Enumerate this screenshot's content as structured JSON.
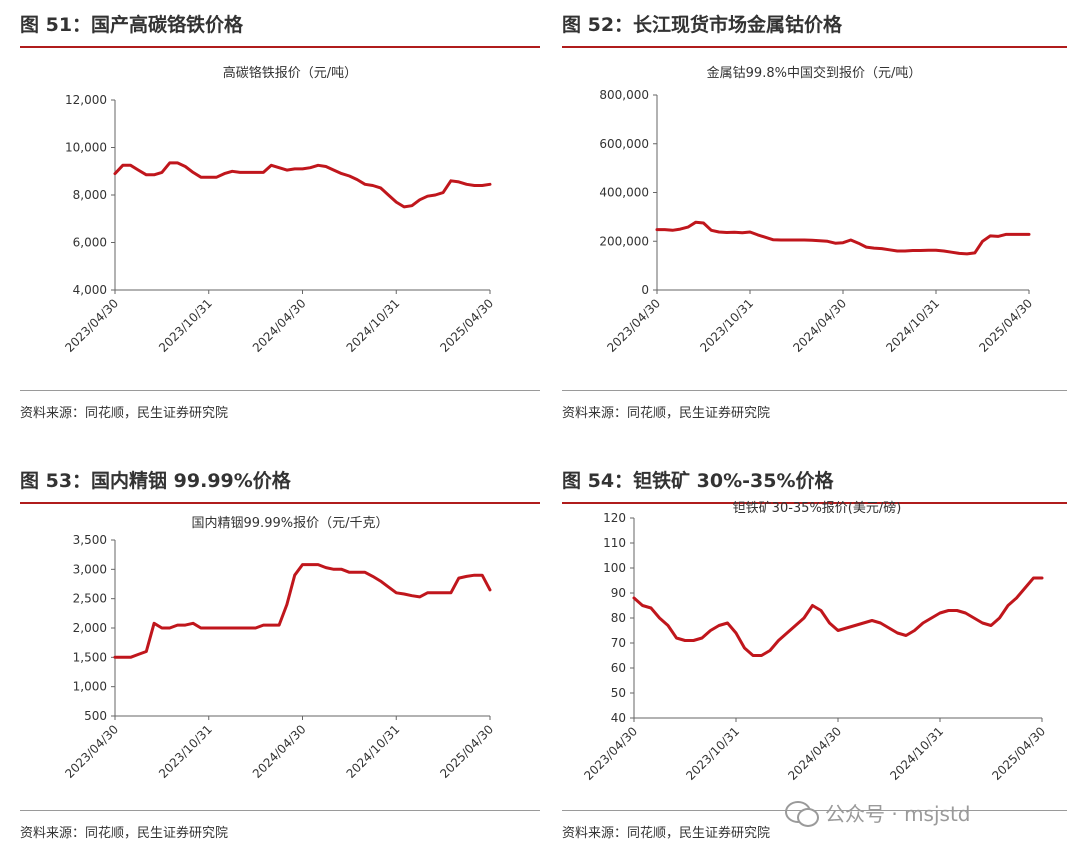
{
  "panels": [
    {
      "fig_title": "图 51：国产高碳铬铁价格",
      "source": "资料来源：同花顺，民生证券研究院",
      "chart_data": {
        "type": "line",
        "title": "高碳铬铁报价（元/吨）",
        "yticks": [
          "12,000",
          "10,000",
          "8,000",
          "6,000",
          "4,000"
        ],
        "ylim": [
          4000,
          12000
        ],
        "xticks": [
          "2023/04/30",
          "2023/10/31",
          "2024/04/30",
          "2024/10/31",
          "2025/04/30"
        ],
        "xlim": [
          0,
          24
        ],
        "series": [
          {
            "x": [
              0,
              0.5,
              1,
              1.5,
              2,
              2.5,
              3,
              3.5,
              4,
              4.5,
              5,
              5.5,
              6,
              6.5,
              7,
              7.5,
              8,
              8.5,
              9,
              9.5,
              10,
              10.5,
              11,
              11.5,
              12,
              12.5,
              13,
              13.5,
              14,
              14.5,
              15,
              15.5,
              16,
              16.5,
              17,
              17.5,
              18,
              18.5,
              19,
              19.5,
              20,
              20.5,
              21,
              21.5,
              22,
              22.5,
              23,
              23.5,
              24
            ],
            "values": [
              8900,
              9250,
              9250,
              9050,
              8850,
              8850,
              8950,
              9350,
              9350,
              9200,
              8950,
              8750,
              8750,
              8750,
              8900,
              9000,
              8950,
              8950,
              8950,
              8950,
              9250,
              9150,
              9050,
              9100,
              9100,
              9150,
              9250,
              9200,
              9050,
              8900,
              8800,
              8650,
              8450,
              8400,
              8300,
              8000,
              7700,
              7500,
              7550,
              7800,
              7950,
              8000,
              8100,
              8600,
              8550,
              8450,
              8400,
              8400,
              8450
            ]
          }
        ]
      }
    },
    {
      "fig_title": "图 52：长江现货市场金属钴价格",
      "source": "资料来源：同花顺，民生证券研究院",
      "chart_data": {
        "type": "line",
        "title": "金属钴99.8%中国交到报价（元/吨）",
        "yticks": [
          "800,000",
          "600,000",
          "400,000",
          "200,000",
          "0"
        ],
        "ylim": [
          0,
          800000
        ],
        "xticks": [
          "2023/04/30",
          "2023/10/31",
          "2024/04/30",
          "2024/10/31",
          "2025/04/30"
        ],
        "xlim": [
          0,
          24
        ],
        "series": [
          {
            "x": [
              0,
              0.5,
              1,
              1.5,
              2,
              2.5,
              3,
              3.5,
              4,
              4.5,
              5,
              5.5,
              6,
              6.5,
              7,
              7.5,
              8,
              8.5,
              9,
              9.5,
              10,
              10.5,
              11,
              11.5,
              12,
              12.5,
              13,
              13.5,
              14,
              14.5,
              15,
              15.5,
              16,
              16.5,
              17,
              17.5,
              18,
              18.5,
              19,
              19.5,
              20,
              20.5,
              21,
              21.5,
              22,
              22.5,
              23,
              23.5,
              24
            ],
            "values": [
              248000,
              248000,
              245000,
              250000,
              258000,
              278000,
              275000,
              245000,
              238000,
              236000,
              237000,
              235000,
              238000,
              226000,
              216000,
              206000,
              205000,
              205000,
              205000,
              205000,
              204000,
              202000,
              200000,
              192000,
              194000,
              205000,
              192000,
              176000,
              172000,
              170000,
              165000,
              160000,
              160000,
              162000,
              162000,
              163000,
              163000,
              160000,
              155000,
              150000,
              148000,
              152000,
              200000,
              222000,
              220000,
              228000,
              228000,
              228000,
              228000
            ]
          }
        ]
      }
    },
    {
      "fig_title": "图 53：国内精铟 99.99%价格",
      "source": "资料来源：同花顺，民生证券研究院",
      "chart_data": {
        "type": "line",
        "title": "国内精铟99.99%报价（元/千克）",
        "yticks": [
          "3,500",
          "3,000",
          "2,500",
          "2,000",
          "1,500",
          "1,000",
          "500"
        ],
        "ylim": [
          500,
          3500
        ],
        "xticks": [
          "2023/04/30",
          "2023/10/31",
          "2024/04/30",
          "2024/10/31",
          "2025/04/30"
        ],
        "xlim": [
          0,
          24
        ],
        "series": [
          {
            "x": [
              0,
              0.5,
              1,
              1.5,
              2,
              2.5,
              3,
              3.5,
              4,
              4.5,
              5,
              5.5,
              6,
              6.5,
              7,
              7.5,
              8,
              8.5,
              9,
              9.5,
              10,
              10.5,
              11,
              11.5,
              12,
              12.5,
              13,
              13.5,
              14,
              14.5,
              15,
              15.5,
              16,
              16.5,
              17,
              17.5,
              18,
              18.5,
              19,
              19.5,
              20,
              20.5,
              21,
              21.5,
              22,
              22.5,
              23,
              23.5,
              24
            ],
            "values": [
              1500,
              1500,
              1500,
              1550,
              1600,
              2080,
              2000,
              2000,
              2050,
              2050,
              2080,
              2000,
              2000,
              2000,
              2000,
              2000,
              2000,
              2000,
              2000,
              2050,
              2050,
              2050,
              2400,
              2900,
              3080,
              3080,
              3080,
              3030,
              3000,
              3000,
              2950,
              2950,
              2950,
              2880,
              2800,
              2700,
              2600,
              2580,
              2550,
              2530,
              2600,
              2600,
              2600,
              2600,
              2850,
              2880,
              2900,
              2900,
              2650
            ]
          }
        ]
      }
    },
    {
      "fig_title": "图 54：钽铁矿 30%-35%价格",
      "source": "资料来源：同花顺，民生证券研究院",
      "chart_data": {
        "type": "line",
        "title": "钽铁矿30-35%报价(美元/磅)",
        "yticks": [
          "120",
          "110",
          "100",
          "90",
          "80",
          "70",
          "60",
          "50",
          "40"
        ],
        "ylim": [
          40,
          120
        ],
        "xticks": [
          "2023/04/30",
          "2023/10/31",
          "2024/04/30",
          "2024/10/31",
          "2025/04/30"
        ],
        "xlim": [
          0,
          24
        ],
        "series": [
          {
            "x": [
              0,
              0.5,
              1,
              1.5,
              2,
              2.5,
              3,
              3.5,
              4,
              4.5,
              5,
              5.5,
              6,
              6.5,
              7,
              7.5,
              8,
              8.5,
              9,
              9.5,
              10,
              10.5,
              11,
              11.5,
              12,
              12.5,
              13,
              13.5,
              14,
              14.5,
              15,
              15.5,
              16,
              16.5,
              17,
              17.5,
              18,
              18.5,
              19,
              19.5,
              20,
              20.5,
              21,
              21.5,
              22,
              22.5,
              23,
              23.5,
              24
            ],
            "values": [
              88,
              85,
              84,
              80,
              77,
              72,
              71,
              71,
              72,
              75,
              77,
              78,
              74,
              68,
              65,
              65,
              67,
              71,
              74,
              77,
              80,
              85,
              83,
              78,
              75,
              76,
              77,
              78,
              79,
              78,
              76,
              74,
              73,
              75,
              78,
              80,
              82,
              83,
              83,
              82,
              80,
              78,
              77,
              80,
              85,
              88,
              92,
              96,
              96
            ]
          }
        ]
      }
    }
  ],
  "watermark": {
    "text": "公众号 · msjstd",
    "icon": "wechat-icon"
  },
  "colors": {
    "line": "#c0161c",
    "rule": "#b01c1c"
  }
}
